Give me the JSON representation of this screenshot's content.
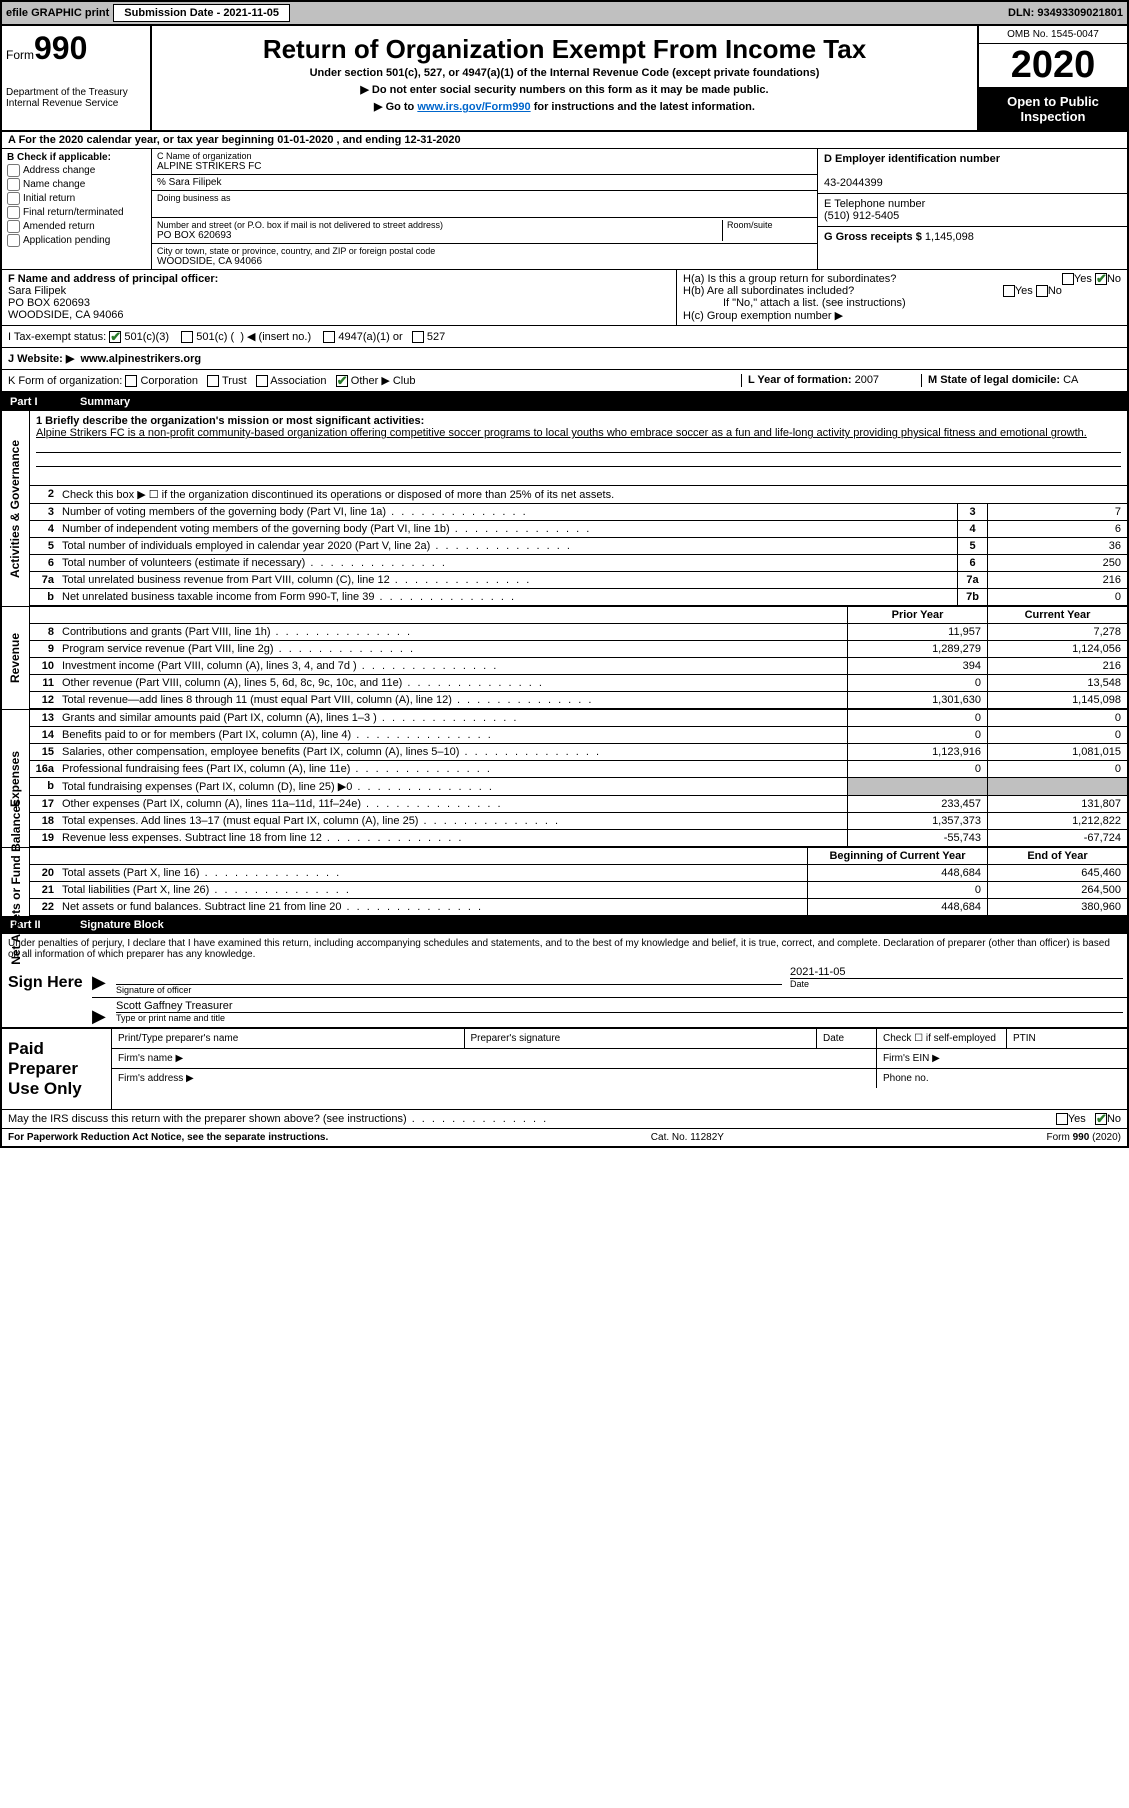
{
  "topbar": {
    "efile": "efile GRAPHIC print",
    "submission_label": "Submission Date - 2021-11-05",
    "dln": "DLN: 93493309021801"
  },
  "header": {
    "form_prefix": "Form",
    "form_num": "990",
    "dept": "Department of the Treasury\nInternal Revenue Service",
    "title": "Return of Organization Exempt From Income Tax",
    "sub1": "Under section 501(c), 527, or 4947(a)(1) of the Internal Revenue Code (except private foundations)",
    "sub2": "Do not enter social security numbers on this form as it may be made public.",
    "sub3_pre": "Go to ",
    "sub3_link": "www.irs.gov/Form990",
    "sub3_post": " for instructions and the latest information.",
    "omb": "OMB No. 1545-0047",
    "year": "2020",
    "inspection": "Open to Public Inspection"
  },
  "row_a": "A  For the 2020 calendar year, or tax year beginning 01-01-2020    , and ending 12-31-2020",
  "checkboxes_b": {
    "title": "B Check if applicable:",
    "items": [
      "Address change",
      "Name change",
      "Initial return",
      "Final return/terminated",
      "Amended return",
      "Application pending"
    ]
  },
  "block_c": {
    "name_label": "C Name of organization",
    "name": "ALPINE STRIKERS FC",
    "care_of": "% Sara Filipek",
    "dba_label": "Doing business as",
    "addr_label": "Number and street (or P.O. box if mail is not delivered to street address)",
    "room_label": "Room/suite",
    "addr": "PO BOX 620693",
    "city_label": "City or town, state or province, country, and ZIP or foreign postal code",
    "city": "WOODSIDE, CA  94066"
  },
  "block_d": {
    "label": "D Employer identification number",
    "value": "43-2044399"
  },
  "block_e": {
    "label": "E Telephone number",
    "value": "(510) 912-5405"
  },
  "block_g": {
    "label": "G Gross receipts $",
    "value": "1,145,098"
  },
  "block_f": {
    "label": "F  Name and address of principal officer:",
    "name": "Sara Filipek",
    "addr1": "PO BOX 620693",
    "addr2": "WOODSIDE, CA  94066"
  },
  "block_h": {
    "ha": "H(a)  Is this a group return for subordinates?",
    "ha_yes": "Yes",
    "ha_no": "No",
    "hb": "H(b)  Are all subordinates included?",
    "hb_note": "If \"No,\" attach a list. (see instructions)",
    "hc": "H(c)  Group exemption number ▶"
  },
  "tax_status": {
    "label": "I  Tax-exempt status:",
    "opt1": "501(c)(3)",
    "opt2a": "501(c) (",
    "opt2b": ") ◀ (insert no.)",
    "opt3": "4947(a)(1) or",
    "opt4": "527"
  },
  "row_j": {
    "label": "J  Website: ▶",
    "value": "www.alpinestrikers.org"
  },
  "row_k": {
    "label": "K Form of organization:",
    "opts": [
      "Corporation",
      "Trust",
      "Association",
      "Other ▶"
    ],
    "other_val": "Club",
    "l_label": "L Year of formation:",
    "l_val": "2007",
    "m_label": "M State of legal domicile:",
    "m_val": "CA"
  },
  "part1": {
    "label": "Part I",
    "title": "Summary",
    "q1_label": "1  Briefly describe the organization's mission or most significant activities:",
    "mission": "Alpine Strikers FC is a non-profit community-based organization offering competitive soccer programs to local youths who embrace soccer as a fun and life-long activity providing physical fitness and emotional growth.",
    "q2": "Check this box ▶ ☐  if the organization discontinued its operations or disposed of more than 25% of its net assets.",
    "rows_gov": [
      {
        "n": "3",
        "t": "Number of voting members of the governing body (Part VI, line 1a)",
        "b": "3",
        "v": "7"
      },
      {
        "n": "4",
        "t": "Number of independent voting members of the governing body (Part VI, line 1b)",
        "b": "4",
        "v": "6"
      },
      {
        "n": "5",
        "t": "Total number of individuals employed in calendar year 2020 (Part V, line 2a)",
        "b": "5",
        "v": "36"
      },
      {
        "n": "6",
        "t": "Total number of volunteers (estimate if necessary)",
        "b": "6",
        "v": "250"
      },
      {
        "n": "7a",
        "t": "Total unrelated business revenue from Part VIII, column (C), line 12",
        "b": "7a",
        "v": "216"
      },
      {
        "n": "b",
        "t": "Net unrelated business taxable income from Form 990-T, line 39",
        "b": "7b",
        "v": "0"
      }
    ],
    "hdr_prior": "Prior Year",
    "hdr_current": "Current Year",
    "rows_rev": [
      {
        "n": "8",
        "t": "Contributions and grants (Part VIII, line 1h)",
        "p": "11,957",
        "c": "7,278"
      },
      {
        "n": "9",
        "t": "Program service revenue (Part VIII, line 2g)",
        "p": "1,289,279",
        "c": "1,124,056"
      },
      {
        "n": "10",
        "t": "Investment income (Part VIII, column (A), lines 3, 4, and 7d )",
        "p": "394",
        "c": "216"
      },
      {
        "n": "11",
        "t": "Other revenue (Part VIII, column (A), lines 5, 6d, 8c, 9c, 10c, and 11e)",
        "p": "0",
        "c": "13,548"
      },
      {
        "n": "12",
        "t": "Total revenue—add lines 8 through 11 (must equal Part VIII, column (A), line 12)",
        "p": "1,301,630",
        "c": "1,145,098"
      }
    ],
    "rows_exp": [
      {
        "n": "13",
        "t": "Grants and similar amounts paid (Part IX, column (A), lines 1–3 )",
        "p": "0",
        "c": "0"
      },
      {
        "n": "14",
        "t": "Benefits paid to or for members (Part IX, column (A), line 4)",
        "p": "0",
        "c": "0"
      },
      {
        "n": "15",
        "t": "Salaries, other compensation, employee benefits (Part IX, column (A), lines 5–10)",
        "p": "1,123,916",
        "c": "1,081,015"
      },
      {
        "n": "16a",
        "t": "Professional fundraising fees (Part IX, column (A), line 11e)",
        "p": "0",
        "c": "0"
      },
      {
        "n": "b",
        "t": "Total fundraising expenses (Part IX, column (D), line 25) ▶0",
        "p": "",
        "c": "",
        "shade": true
      },
      {
        "n": "17",
        "t": "Other expenses (Part IX, column (A), lines 11a–11d, 11f–24e)",
        "p": "233,457",
        "c": "131,807"
      },
      {
        "n": "18",
        "t": "Total expenses. Add lines 13–17 (must equal Part IX, column (A), line 25)",
        "p": "1,357,373",
        "c": "1,212,822"
      },
      {
        "n": "19",
        "t": "Revenue less expenses. Subtract line 18 from line 12",
        "p": "-55,743",
        "c": "-67,724"
      }
    ],
    "hdr_begin": "Beginning of Current Year",
    "hdr_end": "End of Year",
    "rows_net": [
      {
        "n": "20",
        "t": "Total assets (Part X, line 16)",
        "p": "448,684",
        "c": "645,460"
      },
      {
        "n": "21",
        "t": "Total liabilities (Part X, line 26)",
        "p": "0",
        "c": "264,500"
      },
      {
        "n": "22",
        "t": "Net assets or fund balances. Subtract line 21 from line 20",
        "p": "448,684",
        "c": "380,960"
      }
    ],
    "side_gov": "Activities & Governance",
    "side_rev": "Revenue",
    "side_exp": "Expenses",
    "side_net": "Net Assets or Fund Balances"
  },
  "part2": {
    "label": "Part II",
    "title": "Signature Block",
    "penalty": "Under penalties of perjury, I declare that I have examined this return, including accompanying schedules and statements, and to the best of my knowledge and belief, it is true, correct, and complete. Declaration of preparer (other than officer) is based on all information of which preparer has any knowledge.",
    "sign_here": "Sign Here",
    "sig_officer": "Signature of officer",
    "sig_date_label": "Date",
    "sig_date": "2021-11-05",
    "officer_name": "Scott Gaffney Treasurer",
    "type_name": "Type or print name and title",
    "paid_prep": "Paid Preparer Use Only",
    "prep_name": "Print/Type preparer's name",
    "prep_sig": "Preparer's signature",
    "prep_date": "Date",
    "check_self": "Check ☐ if self-employed",
    "ptin": "PTIN",
    "firm_name": "Firm's name    ▶",
    "firm_ein": "Firm's EIN ▶",
    "firm_addr": "Firm's address ▶",
    "phone": "Phone no.",
    "irs_discuss": "May the IRS discuss this return with the preparer shown above? (see instructions)",
    "yes": "Yes",
    "no": "No"
  },
  "footer": {
    "left": "For Paperwork Reduction Act Notice, see the separate instructions.",
    "mid": "Cat. No. 11282Y",
    "right": "Form 990 (2020)"
  }
}
